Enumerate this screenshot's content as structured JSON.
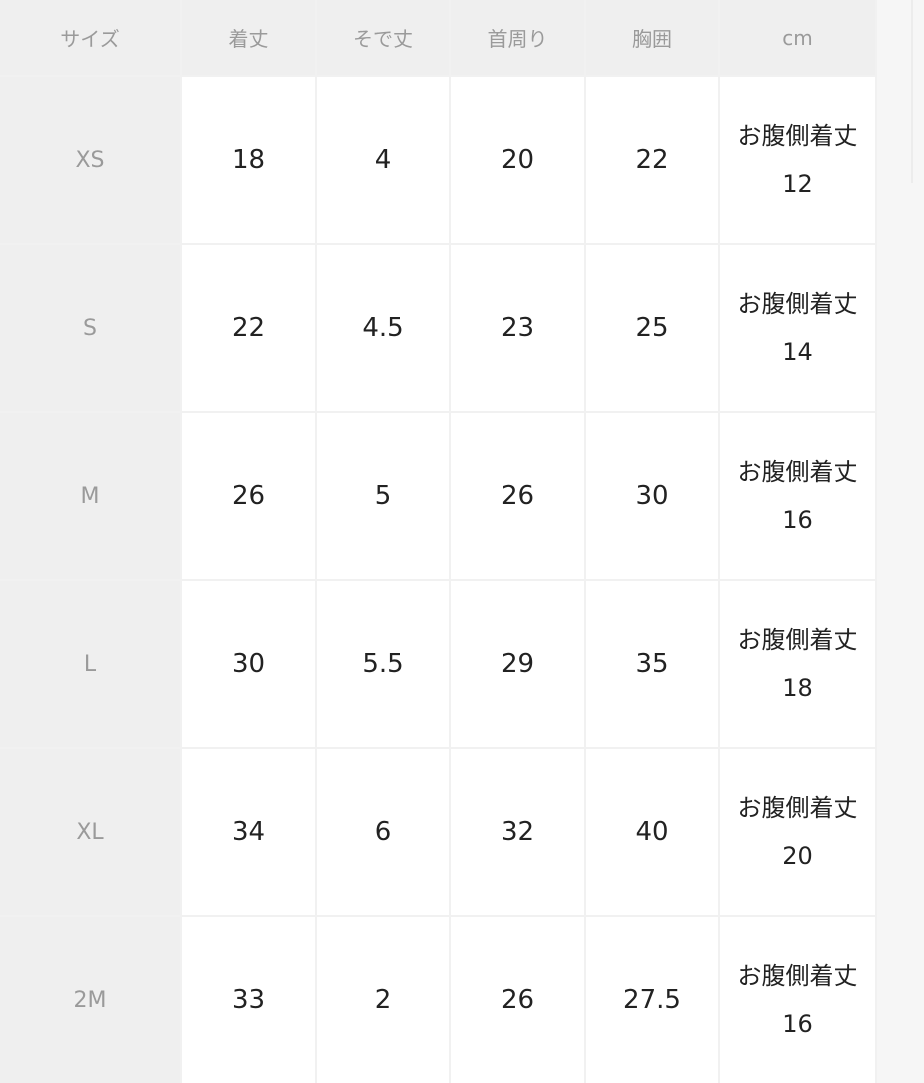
{
  "headers": [
    "サイズ",
    "着丈",
    "そで丈",
    "首周り",
    "胸囲",
    "cm"
  ],
  "rows": [
    {
      "size": "XS",
      "values": [
        "18",
        "4",
        "20",
        "22"
      ],
      "note_label": "お腹側着丈",
      "note_value": "12"
    },
    {
      "size": "S",
      "values": [
        "22",
        "4.5",
        "23",
        "25"
      ],
      "note_label": "お腹側着丈",
      "note_value": "14"
    },
    {
      "size": "M",
      "values": [
        "26",
        "5",
        "26",
        "30"
      ],
      "note_label": "お腹側着丈",
      "note_value": "16"
    },
    {
      "size": "L",
      "values": [
        "30",
        "5.5",
        "29",
        "35"
      ],
      "note_label": "お腹側着丈",
      "note_value": "18"
    },
    {
      "size": "XL",
      "values": [
        "34",
        "6",
        "32",
        "40"
      ],
      "note_label": "お腹側着丈",
      "note_value": "20"
    },
    {
      "size": "2M",
      "values": [
        "33",
        "2",
        "26",
        "27.5"
      ],
      "note_label": "お腹側着丈",
      "note_value": "16"
    }
  ]
}
